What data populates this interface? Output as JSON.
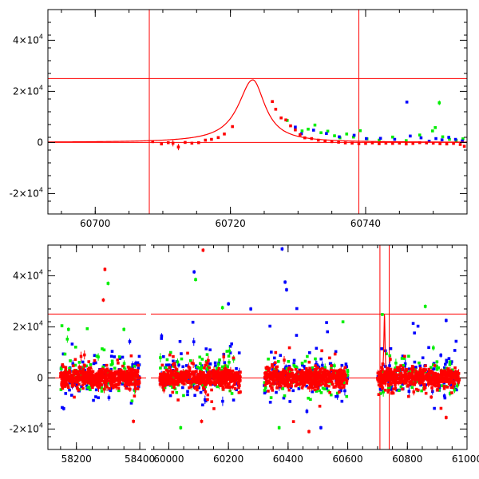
{
  "chart_data": [
    {
      "type": "scatter",
      "title": "",
      "xlabel": "",
      "ylabel": "",
      "xlim": [
        60693,
        60755
      ],
      "ylim": [
        -28000,
        52000
      ],
      "x_ticks": [
        {
          "value": 60700,
          "label": "60700"
        },
        {
          "value": 60720,
          "label": "60720"
        },
        {
          "value": 60740,
          "label": "60740"
        }
      ],
      "y_ticks": [
        {
          "value": 40000,
          "mant": "4×10",
          "exp": "4"
        },
        {
          "value": 20000,
          "mant": "2×10",
          "exp": "4"
        },
        {
          "value": 0,
          "mant": "0",
          "exp": ""
        },
        {
          "value": -20000,
          "mant": "-2×10",
          "exp": "4"
        }
      ],
      "hlines": [
        25000,
        0
      ],
      "vlines": [
        60708,
        60739
      ],
      "model_curve": {
        "color": "#ff0000",
        "peak_x": 60723.3,
        "peak_y": 24500,
        "baseline": 0
      },
      "colors": {
        "red": "#ff0000",
        "green": "#00ee00",
        "blue": "#0000ff",
        "axis": "#000000"
      },
      "series": [
        {
          "name": "red",
          "points": [
            [
              60708.5,
              300
            ],
            [
              60709.8,
              -600
            ],
            [
              60710.8,
              -100
            ],
            [
              60711.5,
              -300
            ],
            [
              60712.3,
              -1800
            ],
            [
              60713.3,
              0
            ],
            [
              60714.3,
              -300
            ],
            [
              60715.3,
              -100
            ],
            [
              60716.3,
              900
            ],
            [
              60717.2,
              1200
            ],
            [
              60718.2,
              1900
            ],
            [
              60719.1,
              3300
            ],
            [
              60720.3,
              6200
            ],
            [
              60726.2,
              16000
            ],
            [
              60726.7,
              13000
            ],
            [
              60727.5,
              9600
            ],
            [
              60728.2,
              8800
            ],
            [
              60728.9,
              6500
            ],
            [
              60729.6,
              4900
            ],
            [
              60730.3,
              3000
            ],
            [
              60731,
              1800
            ],
            [
              60732,
              1500
            ],
            [
              60733,
              900
            ],
            [
              60734,
              600
            ],
            [
              60735,
              300
            ],
            [
              60736,
              100
            ],
            [
              60737,
              -200
            ],
            [
              60738,
              -300
            ],
            [
              60739,
              -500
            ],
            [
              60740,
              -400
            ],
            [
              60741,
              -200
            ],
            [
              60742,
              -500
            ],
            [
              60743,
              -300
            ],
            [
              60744,
              -400
            ],
            [
              60745,
              -300
            ],
            [
              60746,
              -600
            ],
            [
              60747,
              -400
            ],
            [
              60748,
              -100
            ],
            [
              60749,
              -200
            ],
            [
              60750,
              -300
            ],
            [
              60751,
              -500
            ],
            [
              60752,
              -600
            ],
            [
              60753,
              -400
            ],
            [
              60754,
              -800
            ],
            [
              60754.6,
              -1500
            ]
          ]
        },
        {
          "name": "green",
          "points": [
            [
              60728.4,
              8600
            ],
            [
              60730.6,
              4500
            ],
            [
              60731.5,
              5200
            ],
            [
              60732.5,
              6800
            ],
            [
              60733.4,
              3800
            ],
            [
              60734.4,
              4400
            ],
            [
              60735.4,
              2600
            ],
            [
              60736.2,
              1800
            ],
            [
              60737.2,
              3300
            ],
            [
              60738.2,
              2100
            ],
            [
              60739.2,
              4600
            ],
            [
              60740.2,
              1400
            ],
            [
              60742,
              900
            ],
            [
              60744,
              2100
            ],
            [
              60746,
              700
            ],
            [
              60748,
              2900
            ],
            [
              60749.9,
              4500
            ],
            [
              60750.3,
              5800
            ],
            [
              60750.9,
              15500
            ],
            [
              60751.4,
              2200
            ],
            [
              60752.4,
              1200
            ],
            [
              60753.4,
              800
            ],
            [
              60754.4,
              1400
            ]
          ]
        },
        {
          "name": "blue",
          "points": [
            [
              60729.6,
              6000
            ],
            [
              60730.5,
              3400
            ],
            [
              60732.3,
              4800
            ],
            [
              60734.2,
              3500
            ],
            [
              60736.1,
              2200
            ],
            [
              60738.3,
              2800
            ],
            [
              60740.1,
              1500
            ],
            [
              60742.2,
              1600
            ],
            [
              60744.3,
              1200
            ],
            [
              60746.1,
              15800
            ],
            [
              60746.6,
              2500
            ],
            [
              60748.2,
              1800
            ],
            [
              60749.4,
              500
            ],
            [
              60750.4,
              1500
            ],
            [
              60751.3,
              1000
            ],
            [
              60752.3,
              2000
            ],
            [
              60753.3,
              1200
            ],
            [
              60754.3,
              600
            ]
          ]
        }
      ]
    },
    {
      "type": "scatter",
      "title": "",
      "xlabel": "",
      "ylabel": "",
      "xlim": [
        58110,
        61000
      ],
      "ylim": [
        -28000,
        52000
      ],
      "x_ticks": [
        {
          "value": 58200,
          "label": "58200"
        },
        {
          "value": 58400,
          "label": "58400"
        },
        {
          "value": 60000,
          "label": "60000"
        },
        {
          "value": 60200,
          "label": "60200"
        },
        {
          "value": 60400,
          "label": "60400"
        },
        {
          "value": 60600,
          "label": "60600"
        },
        {
          "value": 60800,
          "label": "60800"
        },
        {
          "value": 61000,
          "label": "61000"
        }
      ],
      "axis_break": {
        "left_range": [
          58110,
          58420
        ],
        "right_range": [
          59940,
          61000
        ]
      },
      "y_ticks": [
        {
          "value": 40000,
          "mant": "4×10",
          "exp": "4"
        },
        {
          "value": 20000,
          "mant": "2×10",
          "exp": "4"
        },
        {
          "value": 0,
          "mant": "0",
          "exp": ""
        },
        {
          "value": -20000,
          "mant": "-2×10",
          "exp": "4"
        }
      ],
      "hlines": [
        25000,
        0
      ],
      "vlines": [
        60708,
        60739
      ],
      "model_curve": {
        "color": "#ff0000",
        "peak_x": 60723.3,
        "peak_y": 24500,
        "baseline": 0
      },
      "season_ranges": [
        [
          58150,
          58400
        ],
        [
          59970,
          60240
        ],
        [
          60320,
          60600
        ],
        [
          60700,
          60975
        ]
      ],
      "colors": {
        "red": "#ff0000",
        "green": "#00ee00",
        "blue": "#0000ff",
        "axis": "#000000"
      },
      "outliers": [
        {
          "series": "red",
          "x": 58290,
          "y": 42500
        },
        {
          "series": "red",
          "x": 58285,
          "y": 30500
        },
        {
          "series": "red",
          "x": 58380,
          "y": -17000
        },
        {
          "series": "red",
          "x": 60115,
          "y": 50000
        },
        {
          "series": "red",
          "x": 60110,
          "y": -17000
        },
        {
          "series": "red",
          "x": 60240,
          "y": -5500
        },
        {
          "series": "red",
          "x": 60470,
          "y": -21000
        },
        {
          "series": "red",
          "x": 60930,
          "y": -15500
        },
        {
          "series": "red",
          "x": 60880,
          "y": -7500
        },
        {
          "series": "green",
          "x": 58300,
          "y": 37000
        },
        {
          "series": "green",
          "x": 58175,
          "y": 19000
        },
        {
          "series": "green",
          "x": 58350,
          "y": 19000
        },
        {
          "series": "green",
          "x": 60090,
          "y": 38500
        },
        {
          "series": "green",
          "x": 60040,
          "y": -19500
        },
        {
          "series": "green",
          "x": 60180,
          "y": 27500
        },
        {
          "series": "green",
          "x": 60370,
          "y": -19500
        },
        {
          "series": "green",
          "x": 60860,
          "y": 28000
        },
        {
          "series": "green",
          "x": 60600,
          "y": 2500
        },
        {
          "series": "blue",
          "x": 60085,
          "y": 41500
        },
        {
          "series": "blue",
          "x": 60380,
          "y": 50500
        },
        {
          "series": "blue",
          "x": 60390,
          "y": 37500
        },
        {
          "series": "blue",
          "x": 60395,
          "y": 34500
        },
        {
          "series": "blue",
          "x": 60200,
          "y": 29000
        },
        {
          "series": "blue",
          "x": 60510,
          "y": -19500
        },
        {
          "series": "blue",
          "x": 58160,
          "y": -12000
        },
        {
          "series": "blue",
          "x": 60930,
          "y": 22500
        },
        {
          "series": "blue",
          "x": 60275,
          "y": 27000
        }
      ]
    }
  ]
}
